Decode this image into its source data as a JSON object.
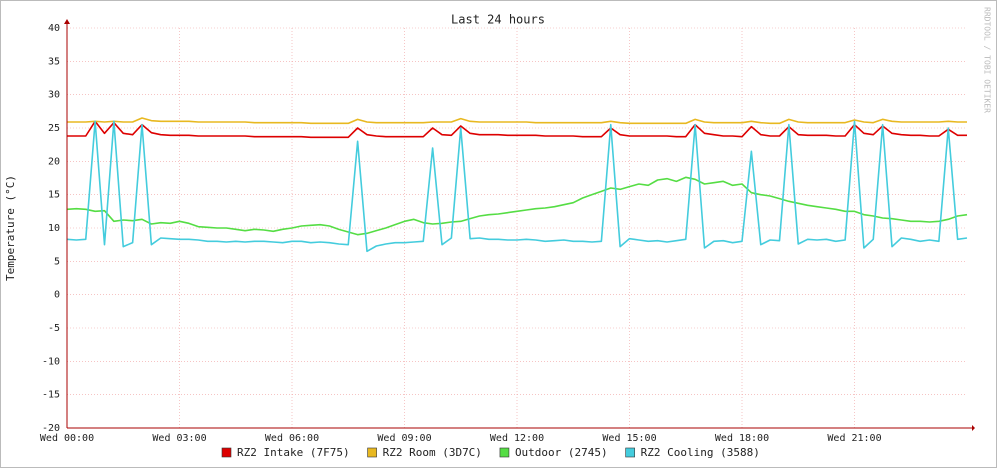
{
  "chart_data": {
    "type": "line",
    "title": "Last 24 hours",
    "y_label": "Temperature (°C)",
    "watermark": "RRDTOOL / TOBI OETIKER",
    "x": [
      0,
      0.25,
      0.5,
      0.75,
      1,
      1.25,
      1.5,
      1.75,
      2,
      2.25,
      2.5,
      2.75,
      3,
      3.25,
      3.5,
      3.75,
      4,
      4.25,
      4.5,
      4.75,
      5,
      5.25,
      5.5,
      5.75,
      6,
      6.25,
      6.5,
      6.75,
      7,
      7.25,
      7.5,
      7.75,
      8,
      8.25,
      8.5,
      8.75,
      9,
      9.25,
      9.5,
      9.75,
      10,
      10.25,
      10.5,
      10.75,
      11,
      11.25,
      11.5,
      11.75,
      12,
      12.25,
      12.5,
      12.75,
      13,
      13.25,
      13.5,
      13.75,
      14,
      14.25,
      14.5,
      14.75,
      15,
      15.25,
      15.5,
      15.75,
      16,
      16.25,
      16.5,
      16.75,
      17,
      17.25,
      17.5,
      17.75,
      18,
      18.25,
      18.5,
      18.75,
      19,
      19.25,
      19.5,
      19.75,
      20,
      20.25,
      20.5,
      20.75,
      21,
      21.25,
      21.5,
      21.75,
      22,
      22.25,
      22.5,
      22.75,
      23,
      23.25,
      23.5,
      23.75,
      24
    ],
    "xlim": [
      0,
      24
    ],
    "xticks": [
      {
        "value": 0,
        "label": "Wed 00:00"
      },
      {
        "value": 3,
        "label": "Wed 03:00"
      },
      {
        "value": 6,
        "label": "Wed 06:00"
      },
      {
        "value": 9,
        "label": "Wed 09:00"
      },
      {
        "value": 12,
        "label": "Wed 12:00"
      },
      {
        "value": 15,
        "label": "Wed 15:00"
      },
      {
        "value": 18,
        "label": "Wed 18:00"
      },
      {
        "value": 21,
        "label": "Wed 21:00"
      }
    ],
    "ylim": [
      -20,
      40
    ],
    "yticks": [
      -20,
      -15,
      -10,
      -5,
      0,
      5,
      10,
      15,
      20,
      25,
      30,
      35,
      40
    ],
    "grid": true,
    "series": [
      {
        "name": "RZ2 Intake (7F75)",
        "color": "#dd0000",
        "values": [
          23.8,
          23.8,
          23.8,
          26.0,
          24.2,
          25.8,
          24.2,
          24.0,
          25.5,
          24.3,
          24.0,
          23.9,
          23.9,
          23.9,
          23.8,
          23.8,
          23.8,
          23.8,
          23.8,
          23.8,
          23.7,
          23.7,
          23.7,
          23.7,
          23.7,
          23.7,
          23.6,
          23.6,
          23.6,
          23.6,
          23.6,
          25.0,
          24.0,
          23.8,
          23.7,
          23.7,
          23.7,
          23.7,
          23.7,
          25.0,
          24.0,
          23.9,
          25.3,
          24.2,
          24.0,
          24.0,
          24.0,
          23.9,
          23.9,
          23.9,
          23.9,
          23.8,
          23.8,
          23.8,
          23.8,
          23.7,
          23.7,
          23.7,
          25.0,
          24.0,
          23.8,
          23.8,
          23.8,
          23.8,
          23.8,
          23.7,
          23.7,
          25.5,
          24.2,
          24.0,
          23.8,
          23.8,
          23.7,
          25.2,
          24.0,
          23.8,
          23.8,
          25.2,
          24.0,
          23.9,
          23.9,
          23.9,
          23.8,
          23.8,
          25.5,
          24.2,
          24.0,
          25.3,
          24.2,
          24.0,
          23.9,
          23.9,
          23.8,
          23.8,
          24.8,
          23.9,
          23.9
        ]
      },
      {
        "name": "RZ2 Room (3D7C)",
        "color": "#e8b820",
        "values": [
          25.9,
          25.9,
          25.9,
          26.0,
          25.9,
          26.0,
          25.9,
          25.9,
          26.5,
          26.1,
          26.0,
          26.0,
          26.0,
          26.0,
          25.9,
          25.9,
          25.9,
          25.9,
          25.9,
          25.9,
          25.8,
          25.8,
          25.8,
          25.8,
          25.8,
          25.8,
          25.7,
          25.7,
          25.7,
          25.7,
          25.7,
          26.3,
          25.9,
          25.8,
          25.8,
          25.8,
          25.8,
          25.8,
          25.8,
          25.9,
          25.9,
          25.9,
          26.4,
          26.0,
          25.9,
          25.9,
          25.9,
          25.9,
          25.9,
          25.9,
          25.8,
          25.8,
          25.8,
          25.8,
          25.8,
          25.8,
          25.8,
          25.8,
          26.0,
          25.8,
          25.7,
          25.7,
          25.7,
          25.7,
          25.7,
          25.7,
          25.7,
          26.3,
          25.9,
          25.8,
          25.8,
          25.8,
          25.8,
          26.0,
          25.8,
          25.7,
          25.7,
          26.3,
          25.9,
          25.8,
          25.8,
          25.8,
          25.8,
          25.8,
          26.2,
          25.9,
          25.8,
          26.3,
          26.0,
          25.9,
          25.9,
          25.9,
          25.9,
          25.9,
          26.0,
          25.9,
          25.9
        ]
      },
      {
        "name": "Outdoor (2745)",
        "color": "#55dd44",
        "values": [
          12.8,
          12.9,
          12.8,
          12.5,
          12.6,
          11.0,
          11.2,
          11.1,
          11.3,
          10.6,
          10.8,
          10.7,
          11.0,
          10.7,
          10.2,
          10.1,
          10.0,
          10.0,
          9.8,
          9.6,
          9.8,
          9.7,
          9.5,
          9.8,
          10.0,
          10.3,
          10.4,
          10.5,
          10.3,
          9.8,
          9.4,
          9.0,
          9.2,
          9.6,
          10.0,
          10.5,
          11.0,
          11.3,
          10.8,
          10.6,
          10.7,
          10.9,
          11.0,
          11.4,
          11.8,
          12.0,
          12.1,
          12.3,
          12.5,
          12.7,
          12.9,
          13.0,
          13.2,
          13.5,
          13.8,
          14.5,
          15.0,
          15.5,
          16.0,
          15.8,
          16.2,
          16.6,
          16.4,
          17.2,
          17.4,
          17.0,
          17.6,
          17.3,
          16.6,
          16.8,
          17.0,
          16.4,
          16.6,
          15.3,
          15.0,
          14.8,
          14.4,
          14.0,
          13.7,
          13.4,
          13.2,
          13.0,
          12.8,
          12.5,
          12.5,
          12.0,
          11.8,
          11.5,
          11.4,
          11.2,
          11.0,
          11.0,
          10.9,
          11.0,
          11.3,
          11.8,
          12.0
        ]
      },
      {
        "name": "RZ2 Cooling (3588)",
        "color": "#44ccdd",
        "values": [
          8.3,
          8.2,
          8.3,
          26.0,
          7.5,
          26.0,
          7.2,
          7.8,
          25.5,
          7.5,
          8.5,
          8.4,
          8.3,
          8.3,
          8.2,
          8.0,
          8.0,
          7.9,
          8.0,
          7.9,
          8.0,
          8.0,
          7.9,
          7.8,
          8.0,
          8.0,
          7.8,
          7.9,
          7.8,
          7.6,
          7.5,
          23.0,
          6.5,
          7.3,
          7.6,
          7.8,
          7.8,
          7.9,
          8.0,
          22.0,
          7.5,
          8.5,
          25.0,
          8.4,
          8.5,
          8.3,
          8.3,
          8.2,
          8.2,
          8.3,
          8.2,
          8.0,
          8.1,
          8.2,
          8.0,
          8.0,
          7.9,
          8.0,
          25.5,
          7.2,
          8.4,
          8.2,
          8.0,
          8.1,
          7.9,
          8.1,
          8.3,
          25.5,
          7.0,
          8.0,
          8.1,
          7.8,
          8.0,
          21.5,
          7.5,
          8.2,
          8.1,
          25.5,
          7.6,
          8.3,
          8.2,
          8.3,
          8.0,
          8.2,
          26.0,
          7.0,
          8.3,
          25.5,
          7.2,
          8.5,
          8.3,
          8.0,
          8.2,
          8.0,
          25.0,
          8.3,
          8.5
        ]
      }
    ]
  }
}
